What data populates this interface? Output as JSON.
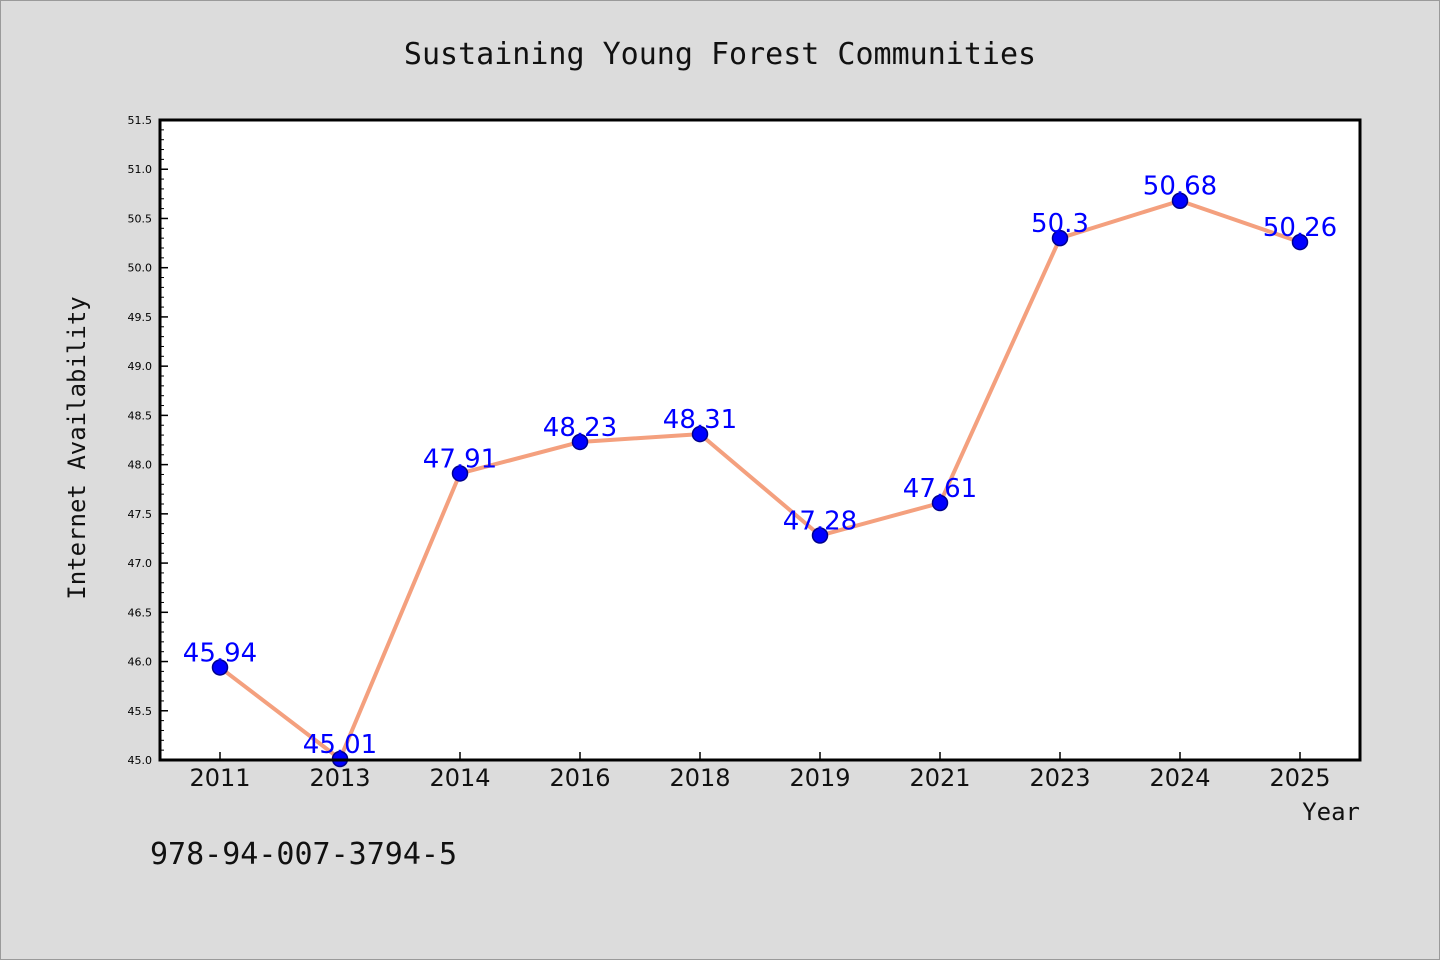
{
  "chart_data": {
    "type": "line",
    "title": "Sustaining Young Forest Communities",
    "xlabel": "Year",
    "ylabel": "Internet Availability",
    "categories": [
      "2011",
      "2013",
      "2014",
      "2016",
      "2018",
      "2019",
      "2021",
      "2023",
      "2024",
      "2025"
    ],
    "values": [
      45.94,
      45.01,
      47.91,
      48.23,
      48.31,
      47.28,
      47.61,
      50.3,
      50.68,
      50.26
    ],
    "data_labels": [
      "45.94",
      "45.01",
      "47.91",
      "48.23",
      "48.31",
      "47.28",
      "47.61",
      "50.3",
      "50.68",
      "50.26"
    ],
    "ylim": [
      45.0,
      51.5
    ],
    "yticks": [
      "45.0",
      "45.5",
      "46.0",
      "46.5",
      "47.0",
      "47.5",
      "48.0",
      "48.5",
      "49.0",
      "49.5",
      "50.0",
      "50.5",
      "51.0",
      "51.5"
    ],
    "grid": false,
    "legend": "none",
    "colors": {
      "line": "#f4a07e",
      "marker_fill": "#0000ff",
      "marker_edge": "#00008b",
      "data_label": "#0000ff",
      "plot_background": "#ffffff",
      "figure_background": "#dcdcdc"
    }
  },
  "footnote": "978-94-007-3794-5"
}
